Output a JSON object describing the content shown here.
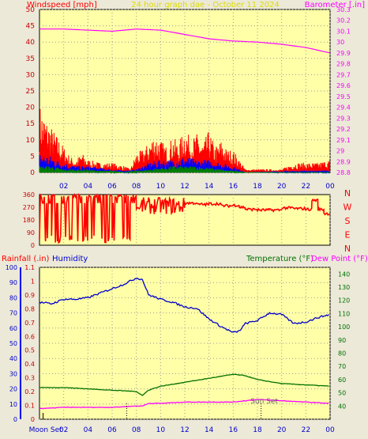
{
  "header": {
    "left_title": "Windspeed [mph]",
    "center_title": "24 hour graph dae - October 11 2024",
    "right_title": "Barometer [.in]"
  },
  "colors": {
    "plot_bg": "#ffffa8",
    "frame_bg": "#ece9d8",
    "wind": "#ff0000",
    "gust_blue": "#0000ff",
    "gust_green": "#008000",
    "barometer": "#ff00ff",
    "humidity": "#0000cc",
    "temperature": "#007000",
    "dewpoint": "#ff00ff",
    "title_yellow": "#dcdc00"
  },
  "lower_header": {
    "rain_label": "Rainfall (.in)",
    "humidity_label": "Humidity",
    "temp_label": "Temperature (°F)",
    "dew_label": "Dew Point (°F)"
  },
  "annotations": {
    "moon_set": "Moon Set",
    "sun_set": "Sun Set"
  },
  "chart_data": [
    {
      "type": "line",
      "name": "wind",
      "title": "Windspeed [mph]",
      "xticks": [
        "02",
        "04",
        "06",
        "08",
        "10",
        "12",
        "14",
        "16",
        "18",
        "20",
        "22",
        "00"
      ],
      "ylim_left": [
        0,
        50
      ],
      "yticks_left": [
        0,
        5,
        10,
        15,
        20,
        25,
        30,
        35,
        40,
        45,
        50
      ],
      "ylim_right": [
        28.8,
        30.3
      ],
      "yticks_right": [
        "28.8",
        "28.9",
        "29",
        "29.1",
        "29.2",
        "29.3",
        "29.4",
        "29.5",
        "29.6",
        "29.7",
        "29.8",
        "29.9",
        "30",
        "30.1",
        "30.2",
        "30.3"
      ],
      "barometer_x_hours": [
        0,
        2,
        4,
        6,
        8,
        10,
        12,
        14,
        16,
        18,
        20,
        22,
        24
      ],
      "barometer_values": [
        30.12,
        30.12,
        30.11,
        30.1,
        30.12,
        30.11,
        30.07,
        30.03,
        30.01,
        30.0,
        29.98,
        29.95,
        29.9
      ],
      "series": [
        {
          "name": "gust",
          "x_hours": [
            0,
            0.5,
            1,
            1.5,
            2,
            2.5,
            3,
            3.5,
            4,
            5,
            6,
            7,
            7.5,
            8,
            8.5,
            9,
            9.5,
            10,
            10.5,
            11,
            11.5,
            12,
            12.5,
            13,
            13.5,
            14,
            14.5,
            15,
            15.5,
            16,
            16.5,
            17,
            18,
            19,
            20,
            21,
            22,
            23,
            24
          ],
          "values": [
            21,
            17,
            14,
            11,
            8,
            5,
            4,
            6,
            4,
            3,
            3,
            2,
            1,
            6,
            7,
            9,
            12,
            10,
            8,
            11,
            9,
            14,
            10,
            12,
            9,
            13,
            8,
            10,
            7,
            7,
            4,
            1,
            1,
            1,
            1,
            3,
            3,
            3,
            4
          ]
        },
        {
          "name": "average",
          "x_hours": [
            0,
            1,
            2,
            3,
            4,
            5,
            6,
            7,
            8,
            9,
            10,
            11,
            12,
            13,
            14,
            15,
            16,
            16.5,
            17,
            24
          ],
          "values": [
            6,
            5,
            3,
            2,
            2,
            1.5,
            1,
            0.5,
            1,
            3,
            4,
            4,
            5,
            4,
            4,
            3,
            2,
            1,
            0,
            0.5
          ]
        },
        {
          "name": "speed",
          "x_hours": [
            0,
            1,
            2,
            3,
            4,
            5,
            6,
            7,
            8,
            9,
            10,
            11,
            12,
            13,
            14,
            15,
            16,
            17,
            24
          ],
          "values": [
            2,
            2,
            1,
            1,
            1,
            0.5,
            0.5,
            0,
            0.5,
            1,
            1.5,
            2,
            2,
            2,
            1.5,
            1,
            0.5,
            0,
            0
          ]
        }
      ]
    },
    {
      "type": "scatter",
      "name": "wind_direction",
      "ylim": [
        0,
        360
      ],
      "yticks": [
        0,
        45,
        90,
        135,
        180,
        225,
        270,
        315,
        360
      ],
      "right_labels": [
        "N",
        "W",
        "S",
        "E",
        "N"
      ],
      "x_hours": [
        0,
        0.5,
        1,
        1.5,
        2,
        2.5,
        3,
        3.5,
        4,
        4.5,
        5,
        5.5,
        6,
        6.5,
        7,
        7.5,
        8,
        8.5,
        9,
        9.5,
        10,
        10.5,
        11,
        11.5,
        12,
        13,
        14,
        15,
        16,
        16.5,
        17,
        18,
        19,
        20,
        21,
        22,
        22.5,
        23,
        23.5,
        24
      ],
      "values": [
        330,
        20,
        340,
        60,
        330,
        10,
        320,
        40,
        330,
        100,
        325,
        30,
        320,
        260,
        265,
        265,
        265,
        330,
        40,
        310,
        20,
        320,
        290,
        280,
        300,
        290,
        295,
        280,
        285,
        270,
        255,
        250,
        250,
        265,
        260,
        255,
        320,
        255,
        225,
        190
      ]
    },
    {
      "type": "line",
      "name": "lower",
      "xticks": [
        "02",
        "04",
        "06",
        "08",
        "10",
        "12",
        "14",
        "16",
        "18",
        "20",
        "22",
        "00"
      ],
      "ylim_humidity": [
        0,
        100
      ],
      "yticks_humidity": [
        0,
        10,
        20,
        30,
        40,
        50,
        60,
        70,
        80,
        90,
        100
      ],
      "ylim_rain": [
        0,
        1.1
      ],
      "yticks_rain": [
        "0",
        "0.1",
        "0.2",
        "0.3",
        "0.4",
        "0.5",
        "0.6",
        "0.7",
        "0.8",
        "0.9",
        "1",
        "1.1"
      ],
      "ylim_temp": [
        30,
        145
      ],
      "yticks_temp": [
        40,
        50,
        60,
        70,
        80,
        90,
        100,
        110,
        120,
        130,
        140
      ],
      "series": [
        {
          "name": "Humidity",
          "x_hours": [
            0,
            1,
            2,
            3,
            4,
            5,
            6,
            7,
            8,
            8.5,
            9,
            10,
            11,
            12,
            13,
            14,
            15,
            16,
            16.5,
            17,
            18,
            19,
            20,
            21,
            22,
            23,
            24
          ],
          "values": [
            77,
            76,
            79,
            79,
            80,
            83,
            86,
            89,
            93,
            92,
            82,
            79,
            77,
            74,
            73,
            66,
            61,
            57,
            58,
            63,
            65,
            70,
            69,
            63,
            64,
            67,
            69
          ]
        },
        {
          "name": "Temperature",
          "x_hours": [
            0,
            2,
            4,
            6,
            8,
            8.5,
            9,
            10,
            12,
            14,
            16,
            17,
            18,
            20,
            22,
            24
          ],
          "values": [
            54,
            54,
            53,
            52,
            51,
            48,
            52,
            55,
            58,
            61,
            64,
            63,
            60,
            57,
            56,
            55
          ]
        },
        {
          "name": "Dew Point",
          "x_hours": [
            0,
            2,
            4,
            6,
            8,
            8.5,
            9,
            10,
            12,
            14,
            16,
            18,
            20,
            22,
            24
          ],
          "values": [
            38,
            39,
            39,
            39,
            40,
            40,
            42,
            42,
            43,
            43,
            43,
            45,
            44,
            43,
            42
          ]
        }
      ],
      "moon_set_hour": 0.3,
      "sun_set_hour": 18.3,
      "marker_hour": 7.2
    }
  ]
}
